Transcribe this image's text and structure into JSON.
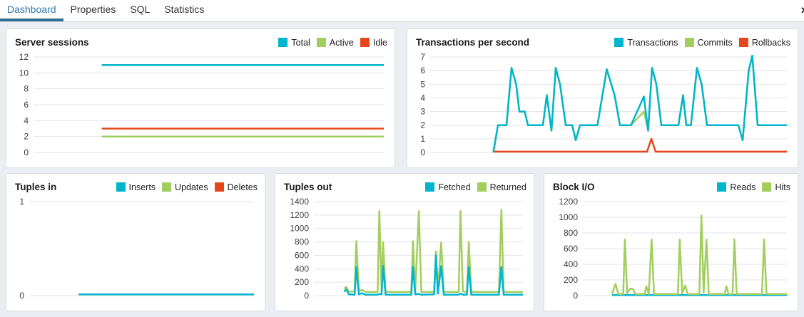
{
  "tabs": {
    "items": [
      {
        "label": "Dashboard",
        "active": true
      },
      {
        "label": "Properties",
        "active": false
      },
      {
        "label": "SQL",
        "active": false
      },
      {
        "label": "Statistics",
        "active": false
      }
    ],
    "close_glyph": "✕"
  },
  "colors": {
    "cyan": "#00b5cc",
    "green": "#a1ce5d",
    "red": "#e5461c",
    "grid": "#e2e3e7",
    "axis_text": "#3c3c3c",
    "accent_tab": "#2e77b0",
    "accent_underline": "#2f6d99"
  },
  "panels": [
    {
      "title": "Server sessions",
      "legend": [
        {
          "label": "Total",
          "color": "cyan"
        },
        {
          "label": "Active",
          "color": "green"
        },
        {
          "label": "Idle",
          "color": "red"
        }
      ],
      "chart_data": {
        "type": "line",
        "ticks": [
          0,
          2,
          4,
          6,
          8,
          10,
          12
        ],
        "ylim": [
          0,
          12
        ],
        "axis_width": 30,
        "grid": true,
        "legend_position": "top-right",
        "series": [
          {
            "name": "Idle",
            "color": "red",
            "points": [
              [
                19.5,
                3
              ],
              [
                100,
                3
              ]
            ]
          },
          {
            "name": "Active",
            "color": "green",
            "points": [
              [
                19.5,
                2
              ],
              [
                100,
                2
              ]
            ]
          },
          {
            "name": "Total",
            "color": "cyan",
            "points": [
              [
                19.5,
                11
              ],
              [
                100,
                11
              ]
            ]
          }
        ]
      }
    },
    {
      "title": "Transactions per second",
      "legend": [
        {
          "label": "Transactions",
          "color": "cyan"
        },
        {
          "label": "Commits",
          "color": "green"
        },
        {
          "label": "Rollbacks",
          "color": "red"
        }
      ],
      "chart_data": {
        "type": "line",
        "ticks": [
          0,
          1,
          2,
          3,
          4,
          5,
          6,
          7
        ],
        "ylim": [
          0,
          7
        ],
        "axis_width": 24,
        "grid": true,
        "legend_position": "top-right",
        "series": [
          {
            "name": "Commits",
            "color": "green",
            "points": [
              [
                17.7,
                0
              ],
              [
                19,
                2
              ],
              [
                21.4,
                2
              ],
              [
                22.8,
                6.2
              ],
              [
                24.1,
                5
              ],
              [
                25,
                3
              ],
              [
                26.5,
                3
              ],
              [
                27.4,
                2
              ],
              [
                31.6,
                2
              ],
              [
                32.7,
                4.2
              ],
              [
                34,
                1.6
              ],
              [
                35.2,
                6.2
              ],
              [
                36.4,
                5
              ],
              [
                38,
                2
              ],
              [
                39.8,
                2
              ],
              [
                40.8,
                0.9
              ],
              [
                42,
                2
              ],
              [
                46.9,
                2
              ],
              [
                49.5,
                6.1
              ],
              [
                51.7,
                4.2
              ],
              [
                53.2,
                2
              ],
              [
                56.3,
                2
              ],
              [
                59.9,
                3
              ],
              [
                61.1,
                1.6
              ],
              [
                62.2,
                6.2
              ],
              [
                63.4,
                5
              ],
              [
                64.8,
                2
              ],
              [
                69.6,
                2
              ],
              [
                70.9,
                4.2
              ],
              [
                71.8,
                2
              ],
              [
                73.1,
                2
              ],
              [
                74.8,
                6.2
              ],
              [
                76.1,
                5
              ],
              [
                77.6,
                2
              ],
              [
                86.4,
                2
              ],
              [
                87.6,
                0.9
              ],
              [
                89.3,
                6
              ],
              [
                90.3,
                7.1
              ],
              [
                91.8,
                2
              ],
              [
                100,
                2
              ]
            ]
          },
          {
            "name": "Rollbacks",
            "color": "red",
            "points": [
              [
                17.7,
                0.06
              ],
              [
                60.8,
                0.06
              ],
              [
                62,
                1
              ],
              [
                63.2,
                0.06
              ],
              [
                100,
                0.06
              ]
            ]
          },
          {
            "name": "Transactions",
            "color": "cyan",
            "points": [
              [
                17.7,
                0
              ],
              [
                19,
                2
              ],
              [
                21.4,
                2
              ],
              [
                22.8,
                6.2
              ],
              [
                24.1,
                5
              ],
              [
                25,
                3
              ],
              [
                26.5,
                3
              ],
              [
                27.4,
                2
              ],
              [
                31.6,
                2
              ],
              [
                32.7,
                4.2
              ],
              [
                34,
                1.6
              ],
              [
                35.2,
                6.2
              ],
              [
                36.4,
                5
              ],
              [
                38,
                2
              ],
              [
                39.8,
                2
              ],
              [
                40.8,
                0.9
              ],
              [
                42,
                2
              ],
              [
                46.9,
                2
              ],
              [
                49.5,
                6.1
              ],
              [
                51.7,
                4.2
              ],
              [
                53.2,
                2
              ],
              [
                56.3,
                2
              ],
              [
                59.9,
                4.1
              ],
              [
                61.1,
                1.6
              ],
              [
                62.2,
                6.2
              ],
              [
                63.4,
                5
              ],
              [
                64.8,
                2
              ],
              [
                69.6,
                2
              ],
              [
                70.9,
                4.2
              ],
              [
                71.8,
                2
              ],
              [
                73.1,
                2
              ],
              [
                74.8,
                6.2
              ],
              [
                76.1,
                5
              ],
              [
                77.6,
                2
              ],
              [
                86.4,
                2
              ],
              [
                87.6,
                0.9
              ],
              [
                89.3,
                6
              ],
              [
                90.3,
                7.1
              ],
              [
                91.8,
                2
              ],
              [
                100,
                2
              ]
            ]
          }
        ]
      }
    },
    {
      "title": "Tuples in",
      "legend": [
        {
          "label": "Inserts",
          "color": "cyan"
        },
        {
          "label": "Updates",
          "color": "green"
        },
        {
          "label": "Deletes",
          "color": "red"
        }
      ],
      "chart_data": {
        "type": "line",
        "ticks": [
          0,
          1
        ],
        "ylim": [
          0,
          1
        ],
        "axis_width": 24,
        "grid": true,
        "legend_position": "top-right",
        "series": [
          {
            "name": "Updates",
            "color": "green",
            "points": [
              [
                22,
                0.013
              ],
              [
                100,
                0.013
              ]
            ]
          },
          {
            "name": "Deletes",
            "color": "red",
            "points": [
              [
                22,
                0.013
              ],
              [
                100,
                0.013
              ]
            ]
          },
          {
            "name": "Inserts",
            "color": "cyan",
            "points": [
              [
                22,
                0.013
              ],
              [
                100,
                0.013
              ]
            ]
          }
        ]
      }
    },
    {
      "title": "Tuples out",
      "legend": [
        {
          "label": "Fetched",
          "color": "cyan"
        },
        {
          "label": "Returned",
          "color": "green"
        }
      ],
      "chart_data": {
        "type": "line",
        "ticks": [
          0,
          200,
          400,
          600,
          800,
          1000,
          1200,
          1400
        ],
        "ylim": [
          0,
          1400
        ],
        "axis_width": 46,
        "grid": true,
        "legend_position": "top-right",
        "series": [
          {
            "name": "Returned",
            "color": "green",
            "points": [
              [
                14.4,
                100
              ],
              [
                15.5,
                130
              ],
              [
                16.7,
                60
              ],
              [
                19.5,
                60
              ],
              [
                20.3,
                810
              ],
              [
                21.5,
                70
              ],
              [
                23,
                85
              ],
              [
                24.7,
                55
              ],
              [
                30.5,
                55
              ],
              [
                31.3,
                1260
              ],
              [
                32.4,
                60
              ],
              [
                33.1,
                800
              ],
              [
                34.3,
                55
              ],
              [
                46.6,
                55
              ],
              [
                47.4,
                810
              ],
              [
                48.5,
                60
              ],
              [
                50.2,
                1260
              ],
              [
                51.4,
                55
              ],
              [
                57.5,
                55
              ],
              [
                58.4,
                660
              ],
              [
                59.3,
                50
              ],
              [
                60.9,
                790
              ],
              [
                62.1,
                55
              ],
              [
                69.3,
                55
              ],
              [
                70.1,
                1260
              ],
              [
                71.3,
                60
              ],
              [
                73.2,
                55
              ],
              [
                74.1,
                800
              ],
              [
                75.3,
                55
              ],
              [
                88.5,
                55
              ],
              [
                89.7,
                1280
              ],
              [
                90.8,
                55
              ],
              [
                100,
                55
              ]
            ]
          },
          {
            "name": "Fetched",
            "color": "cyan",
            "points": [
              [
                14.4,
                60
              ],
              [
                15.5,
                90
              ],
              [
                16.7,
                20
              ],
              [
                19.5,
                15
              ],
              [
                20.3,
                430
              ],
              [
                21.5,
                20
              ],
              [
                23,
                35
              ],
              [
                24.7,
                15
              ],
              [
                30.5,
                15
              ],
              [
                31.3,
                25
              ],
              [
                32.4,
                20
              ],
              [
                33.1,
                440
              ],
              [
                34.3,
                15
              ],
              [
                46.6,
                15
              ],
              [
                47.4,
                430
              ],
              [
                48.5,
                20
              ],
              [
                50.2,
                25
              ],
              [
                51.4,
                15
              ],
              [
                57.5,
                20
              ],
              [
                58.4,
                600
              ],
              [
                59.3,
                30
              ],
              [
                60.9,
                440
              ],
              [
                62.1,
                15
              ],
              [
                69.3,
                15
              ],
              [
                70.1,
                30
              ],
              [
                71.3,
                15
              ],
              [
                73.2,
                15
              ],
              [
                74.1,
                430
              ],
              [
                75.3,
                15
              ],
              [
                88.5,
                15
              ],
              [
                89.7,
                430
              ],
              [
                90.8,
                15
              ],
              [
                100,
                15
              ]
            ]
          }
        ]
      }
    },
    {
      "title": "Block I/O",
      "legend": [
        {
          "label": "Reads",
          "color": "cyan"
        },
        {
          "label": "Hits",
          "color": "green"
        }
      ],
      "chart_data": {
        "type": "line",
        "ticks": [
          0,
          200,
          400,
          600,
          800,
          1000,
          1200
        ],
        "ylim": [
          0,
          1200
        ],
        "axis_width": 46,
        "grid": true,
        "legend_position": "top-right",
        "series": [
          {
            "name": "Reads",
            "color": "cyan",
            "points": [
              [
                14.3,
                8
              ],
              [
                100,
                8
              ]
            ]
          },
          {
            "name": "Hits",
            "color": "green",
            "points": [
              [
                14.3,
                20
              ],
              [
                16,
                150
              ],
              [
                17.4,
                20
              ],
              [
                19.8,
                20
              ],
              [
                20.6,
                715
              ],
              [
                21.7,
                30
              ],
              [
                23.1,
                90
              ],
              [
                24.6,
                85
              ],
              [
                25.7,
                20
              ],
              [
                30.3,
                20
              ],
              [
                31.1,
                120
              ],
              [
                32.3,
                20
              ],
              [
                33.7,
                715
              ],
              [
                34.9,
                20
              ],
              [
                46.6,
                20
              ],
              [
                47.5,
                715
              ],
              [
                48.7,
                30
              ],
              [
                50.1,
                130
              ],
              [
                51.4,
                20
              ],
              [
                57.1,
                20
              ],
              [
                58.1,
                1020
              ],
              [
                59.2,
                40
              ],
              [
                60.6,
                715
              ],
              [
                61.7,
                20
              ],
              [
                69.5,
                20
              ],
              [
                70.3,
                120
              ],
              [
                71.4,
                20
              ],
              [
                73.4,
                20
              ],
              [
                74.3,
                715
              ],
              [
                75.4,
                20
              ],
              [
                87.8,
                20
              ],
              [
                88.8,
                715
              ],
              [
                90,
                20
              ],
              [
                100,
                20
              ]
            ]
          }
        ]
      }
    }
  ]
}
